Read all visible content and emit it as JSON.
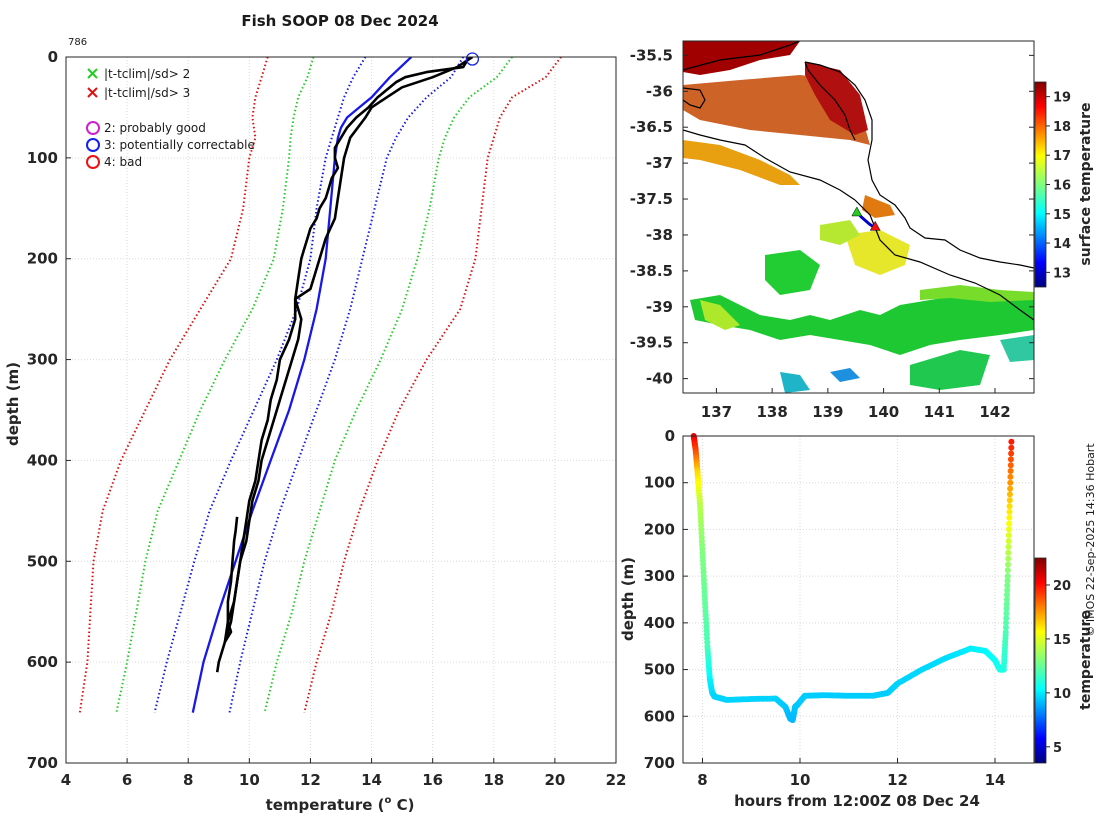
{
  "chart_data": [
    {
      "type": "line",
      "title": "Fish SOOP 08 Dec 2024",
      "corner_label": "786",
      "xlabel": "temperature (o C)",
      "xlabel_parts": {
        "before": "temperature (",
        "sup": "o",
        "after": " C)"
      },
      "ylabel": "depth (m)",
      "xlim": [
        4,
        22
      ],
      "ylim": [
        700,
        0
      ],
      "xticks": [
        "4",
        "6",
        "8",
        "10",
        "12",
        "14",
        "16",
        "18",
        "20",
        "22"
      ],
      "yticks": [
        "0",
        "100",
        "200",
        "300",
        "400",
        "500",
        "600",
        "700"
      ],
      "grid": true,
      "legend": {
        "flag_markers": [
          {
            "label": "|t-tclim|/sd> 2",
            "color": "#22cc22"
          },
          {
            "label": "|t-tclim|/sd> 3",
            "color": "#dd1111"
          }
        ],
        "qc_circles": [
          {
            "label": "2: probably good",
            "color": "#cc22cc"
          },
          {
            "label": "3: potentially correctable",
            "color": "#1122ee"
          },
          {
            "label": "4: bad",
            "color": "#ee1111"
          }
        ]
      },
      "series": [
        {
          "name": "climatology mean",
          "style": "solid",
          "color": "#1818e8",
          "depth": [
            0,
            20,
            40,
            50,
            60,
            70,
            80,
            100,
            150,
            200,
            250,
            300,
            350,
            400,
            450,
            500,
            550,
            600,
            650
          ],
          "temp": [
            15.3,
            14.6,
            14.0,
            13.6,
            13.2,
            13.0,
            12.9,
            12.8,
            12.65,
            12.5,
            12.2,
            11.8,
            11.3,
            10.7,
            10.1,
            9.55,
            9.0,
            8.5,
            8.15
          ]
        },
        {
          "name": "mean - 1sd",
          "style": "dotted",
          "color": "#1818e8",
          "depth": [
            0,
            20,
            40,
            60,
            80,
            100,
            150,
            200,
            250,
            300,
            350,
            400,
            450,
            500,
            550,
            600,
            650
          ],
          "temp": [
            13.8,
            13.4,
            13.1,
            12.9,
            12.7,
            12.5,
            12.2,
            12.0,
            11.55,
            10.9,
            10.15,
            9.4,
            8.7,
            8.2,
            7.75,
            7.3,
            6.9
          ]
        },
        {
          "name": "mean + 1sd",
          "style": "dotted",
          "color": "#1818e8",
          "depth": [
            0,
            20,
            40,
            60,
            80,
            100,
            150,
            200,
            250,
            300,
            350,
            400,
            450,
            500,
            550,
            600,
            650
          ],
          "temp": [
            17.0,
            16.6,
            15.8,
            15.2,
            14.8,
            14.5,
            14.1,
            13.7,
            13.3,
            12.8,
            12.2,
            11.6,
            11.0,
            10.5,
            10.1,
            9.7,
            9.35
          ]
        },
        {
          "name": "mean - 2sd",
          "style": "dotted",
          "color": "#22cc22",
          "depth": [
            0,
            20,
            40,
            60,
            80,
            100,
            150,
            200,
            250,
            300,
            350,
            400,
            450,
            500,
            550,
            600,
            650
          ],
          "temp": [
            12.1,
            11.9,
            11.6,
            11.45,
            11.35,
            11.3,
            11.1,
            10.8,
            10.1,
            9.2,
            8.4,
            7.7,
            7.0,
            6.6,
            6.3,
            6.0,
            5.65
          ]
        },
        {
          "name": "mean + 2sd",
          "style": "dotted",
          "color": "#22cc22",
          "depth": [
            0,
            20,
            40,
            60,
            80,
            100,
            150,
            200,
            250,
            300,
            350,
            400,
            450,
            500,
            550,
            600,
            650
          ],
          "temp": [
            18.6,
            18.1,
            17.2,
            16.7,
            16.4,
            16.2,
            15.9,
            15.5,
            15.0,
            14.3,
            13.5,
            12.8,
            12.3,
            11.8,
            11.4,
            10.9,
            10.5
          ]
        },
        {
          "name": "mean - 3sd",
          "style": "dotted",
          "color": "#dd1111",
          "depth": [
            0,
            20,
            40,
            60,
            80,
            100,
            150,
            200,
            250,
            300,
            350,
            400,
            450,
            500,
            550,
            600,
            650
          ],
          "temp": [
            10.6,
            10.4,
            10.2,
            10.1,
            10.2,
            10.0,
            9.8,
            9.4,
            8.4,
            7.4,
            6.6,
            5.8,
            5.2,
            4.9,
            4.8,
            4.7,
            4.45
          ]
        },
        {
          "name": "mean + 3sd",
          "style": "dotted",
          "color": "#dd1111",
          "depth": [
            0,
            20,
            40,
            60,
            80,
            100,
            150,
            200,
            250,
            300,
            350,
            400,
            450,
            500,
            550,
            600,
            650
          ],
          "temp": [
            20.2,
            19.7,
            18.6,
            18.2,
            18.0,
            17.8,
            17.6,
            17.4,
            16.9,
            15.8,
            14.9,
            14.2,
            13.6,
            13.1,
            12.7,
            12.2,
            11.8
          ]
        },
        {
          "name": "observed profile (descent)",
          "style": "solid",
          "color": "#000000",
          "depth": [
            0,
            10,
            15,
            20,
            25,
            30,
            40,
            50,
            60,
            70,
            80,
            90,
            100,
            110,
            120,
            130,
            140,
            150,
            160,
            170,
            180,
            190,
            200,
            220,
            240,
            260,
            280,
            300,
            320,
            340,
            360,
            380,
            400,
            420,
            440,
            460,
            480,
            500,
            520,
            540,
            560,
            580,
            600,
            610
          ],
          "temp": [
            17.2,
            17.0,
            15.8,
            15.1,
            14.8,
            14.6,
            14.2,
            13.9,
            13.5,
            13.2,
            13.0,
            12.8,
            12.8,
            12.9,
            12.7,
            12.6,
            12.5,
            12.3,
            12.2,
            12.0,
            11.9,
            11.8,
            11.7,
            11.6,
            11.5,
            11.5,
            11.3,
            11.0,
            10.9,
            10.7,
            10.6,
            10.4,
            10.3,
            10.2,
            10.0,
            9.9,
            9.8,
            9.7,
            9.6,
            9.5,
            9.3,
            9.2,
            9.0,
            8.95
          ]
        },
        {
          "name": "observed profile (ascent)",
          "style": "solid",
          "color": "#000000",
          "depth": [
            456,
            470,
            480,
            500,
            520,
            540,
            560,
            570,
            580,
            560,
            540,
            520,
            500,
            480,
            460,
            440,
            420,
            400,
            380,
            360,
            340,
            320,
            300,
            280,
            260,
            240,
            230,
            220,
            200,
            180,
            160,
            140,
            120,
            100,
            80,
            60,
            50,
            40,
            30,
            20,
            10,
            0
          ],
          "temp": [
            9.6,
            9.55,
            9.5,
            9.45,
            9.4,
            9.3,
            9.3,
            9.4,
            9.2,
            9.4,
            9.5,
            9.6,
            9.7,
            9.9,
            10.0,
            10.1,
            10.3,
            10.4,
            10.6,
            10.8,
            11.0,
            11.2,
            11.4,
            11.6,
            11.7,
            11.5,
            12.0,
            12.1,
            12.3,
            12.5,
            12.8,
            12.9,
            13.0,
            13.1,
            13.3,
            13.8,
            14.0,
            14.5,
            15.0,
            16.0,
            16.8,
            17.3
          ]
        }
      ],
      "markers": [
        {
          "temp": 17.3,
          "depth": 2,
          "type": "circle",
          "color": "#1122ee"
        }
      ]
    },
    {
      "type": "heatmap",
      "xticks": [
        "137",
        "138",
        "139",
        "140",
        "141",
        "142"
      ],
      "yticks": [
        "-35.5",
        "-36",
        "-36.5",
        "-37",
        "-37.5",
        "-38",
        "-38.5",
        "-39",
        "-39.5",
        "-40"
      ],
      "xlim": [
        136.4,
        142.7
      ],
      "ylim": [
        -40.2,
        -35.3
      ],
      "colorbar_label": "surface temperature",
      "colorbar_ticks": [
        "13",
        "14",
        "15",
        "16",
        "17",
        "18",
        "19"
      ],
      "colorbar_range": [
        12.5,
        19.5
      ],
      "track": {
        "lon": [
          139.5,
          139.6,
          139.75,
          139.85
        ],
        "lat": [
          -37.65,
          -37.75,
          -37.85,
          -37.9
        ]
      },
      "track_markers": [
        {
          "lon": 139.52,
          "lat": -37.68,
          "color": "#22cc22",
          "type": "triangle"
        },
        {
          "lon": 139.85,
          "lat": -37.88,
          "color": "#ee1111",
          "type": "triangle"
        }
      ]
    },
    {
      "type": "scatter",
      "xlabel": "hours from 12:00Z 08 Dec 24",
      "ylabel": "depth (m)",
      "xlim": [
        7.6,
        14.8
      ],
      "ylim": [
        700,
        0
      ],
      "xticks": [
        "8",
        "10",
        "12",
        "14"
      ],
      "yticks": [
        "0",
        "100",
        "200",
        "300",
        "400",
        "500",
        "600",
        "700"
      ],
      "colorbar_label": "temperature",
      "colorbar_ticks": [
        "5",
        "10",
        "15",
        "20"
      ],
      "colorbar_range": [
        3.5,
        22.5
      ],
      "path": {
        "hours": [
          7.82,
          7.86,
          7.9,
          7.95,
          8.0,
          8.05,
          8.1,
          8.15,
          8.2,
          8.25,
          8.5,
          9.0,
          9.5,
          9.7,
          9.8,
          9.85,
          9.9,
          9.95,
          10.1,
          10.5,
          11.0,
          11.5,
          11.8,
          12.0,
          12.5,
          13.0,
          13.5,
          13.8,
          14.0,
          14.1,
          14.18,
          14.22,
          14.26,
          14.3,
          14.34
        ],
        "depth": [
          0,
          30,
          80,
          150,
          250,
          350,
          450,
          520,
          550,
          558,
          565,
          563,
          562,
          580,
          605,
          608,
          580,
          575,
          556,
          555,
          556,
          556,
          550,
          530,
          500,
          475,
          455,
          460,
          480,
          500,
          500,
          420,
          300,
          150,
          0
        ],
        "temp": [
          20.5,
          19,
          16,
          14,
          13,
          12.5,
          12,
          10.5,
          10,
          9.8,
          9.8,
          9.8,
          9.8,
          9.6,
          9.3,
          9.3,
          9.5,
          9.6,
          9.7,
          9.7,
          9.7,
          9.7,
          9.7,
          9.8,
          9.9,
          10,
          10.3,
          10.5,
          10.8,
          11,
          11.2,
          12,
          13,
          16,
          20
        ]
      }
    }
  ],
  "footer_credit": "© IMOS 22-Sep-2025 14:36 Hobart"
}
